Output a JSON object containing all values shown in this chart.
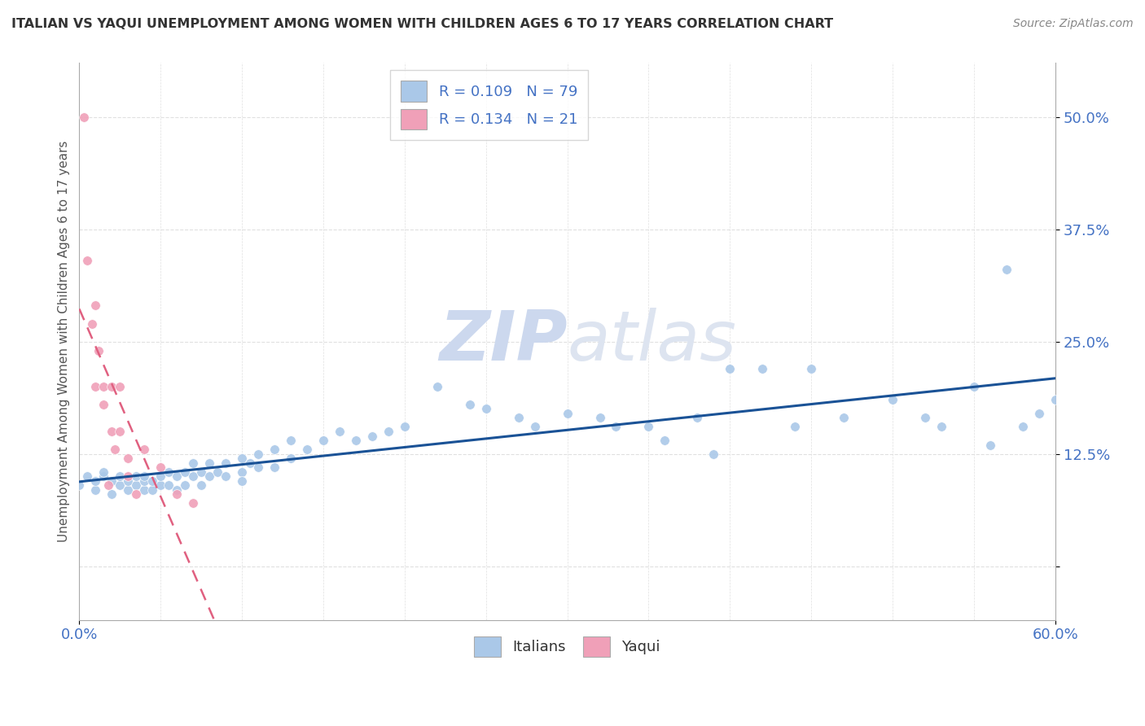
{
  "title": "ITALIAN VS YAQUI UNEMPLOYMENT AMONG WOMEN WITH CHILDREN AGES 6 TO 17 YEARS CORRELATION CHART",
  "source": "Source: ZipAtlas.com",
  "ylabel": "Unemployment Among Women with Children Ages 6 to 17 years",
  "italian_color": "#aac8e8",
  "yaqui_color": "#f0a0b8",
  "italian_line_color": "#1a5296",
  "yaqui_line_color": "#e06080",
  "background_color": "#ffffff",
  "grid_color": "#e0e0e0",
  "watermark_color": "#ccd8ee",
  "xlim": [
    0.0,
    0.6
  ],
  "ylim": [
    -0.06,
    0.56
  ],
  "x_tick_labels": [
    "0.0%",
    "60.0%"
  ],
  "y_ticks": [
    0.0,
    0.125,
    0.25,
    0.375,
    0.5
  ],
  "y_tick_labels": [
    "",
    "12.5%",
    "25.0%",
    "37.5%",
    "50.0%"
  ],
  "italian_x": [
    0.0,
    0.005,
    0.01,
    0.01,
    0.015,
    0.015,
    0.02,
    0.02,
    0.025,
    0.025,
    0.03,
    0.03,
    0.035,
    0.035,
    0.04,
    0.04,
    0.04,
    0.045,
    0.045,
    0.05,
    0.05,
    0.055,
    0.055,
    0.06,
    0.06,
    0.065,
    0.065,
    0.07,
    0.07,
    0.075,
    0.075,
    0.08,
    0.08,
    0.085,
    0.09,
    0.09,
    0.1,
    0.1,
    0.1,
    0.105,
    0.11,
    0.11,
    0.12,
    0.12,
    0.13,
    0.13,
    0.14,
    0.15,
    0.16,
    0.17,
    0.18,
    0.19,
    0.2,
    0.22,
    0.24,
    0.25,
    0.27,
    0.28,
    0.3,
    0.32,
    0.33,
    0.35,
    0.36,
    0.38,
    0.39,
    0.4,
    0.42,
    0.44,
    0.45,
    0.47,
    0.5,
    0.52,
    0.53,
    0.55,
    0.56,
    0.57,
    0.58,
    0.59,
    0.6
  ],
  "italian_y": [
    0.09,
    0.1,
    0.085,
    0.095,
    0.1,
    0.105,
    0.08,
    0.095,
    0.09,
    0.1,
    0.085,
    0.095,
    0.09,
    0.1,
    0.085,
    0.095,
    0.1,
    0.085,
    0.095,
    0.09,
    0.1,
    0.09,
    0.105,
    0.085,
    0.1,
    0.09,
    0.105,
    0.1,
    0.115,
    0.09,
    0.105,
    0.1,
    0.115,
    0.105,
    0.1,
    0.115,
    0.105,
    0.12,
    0.095,
    0.115,
    0.11,
    0.125,
    0.11,
    0.13,
    0.12,
    0.14,
    0.13,
    0.14,
    0.15,
    0.14,
    0.145,
    0.15,
    0.155,
    0.2,
    0.18,
    0.175,
    0.165,
    0.155,
    0.17,
    0.165,
    0.155,
    0.155,
    0.14,
    0.165,
    0.125,
    0.22,
    0.22,
    0.155,
    0.22,
    0.165,
    0.185,
    0.165,
    0.155,
    0.2,
    0.135,
    0.33,
    0.155,
    0.17,
    0.185
  ],
  "yaqui_x": [
    0.003,
    0.005,
    0.008,
    0.01,
    0.01,
    0.012,
    0.015,
    0.015,
    0.018,
    0.02,
    0.02,
    0.022,
    0.025,
    0.025,
    0.03,
    0.03,
    0.035,
    0.04,
    0.05,
    0.06,
    0.07
  ],
  "yaqui_y": [
    0.5,
    0.34,
    0.27,
    0.29,
    0.2,
    0.24,
    0.18,
    0.2,
    0.09,
    0.15,
    0.2,
    0.13,
    0.15,
    0.2,
    0.12,
    0.1,
    0.08,
    0.13,
    0.11,
    0.08,
    0.07
  ]
}
